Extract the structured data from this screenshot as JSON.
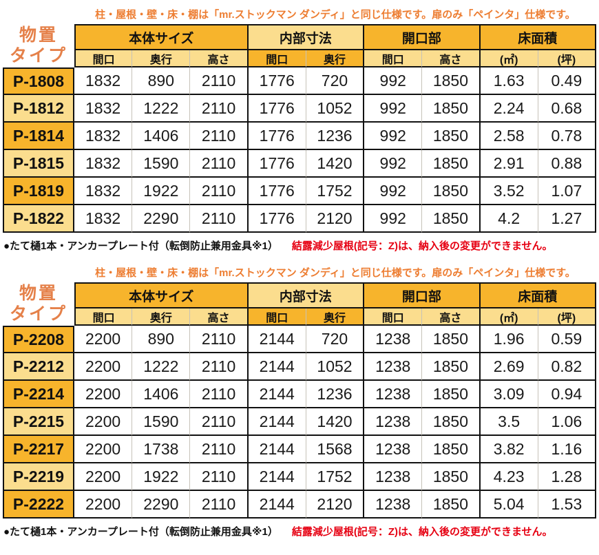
{
  "shared": {
    "note": "柱・屋根・壁・床・棚は「mr.ストックマン ダンディ」と同じ仕様です。扉のみ「ペインタ」仕様です。",
    "footer_black": "●たて樋1本・アンカープレート付（転倒防止兼用金具※1）",
    "footer_red": "結露減少屋根(記号：Z)は、納入後の変更ができません。"
  },
  "header": {
    "row_title_lines": [
      "物置",
      "タイプ"
    ],
    "groups": [
      {
        "label": "本体サイズ",
        "children": [
          "間口",
          "奥行",
          "高さ"
        ]
      },
      {
        "label": "内部寸法",
        "children": [
          "間口",
          "奥行"
        ]
      },
      {
        "label": "開口部",
        "children": [
          "間口",
          "高さ"
        ]
      },
      {
        "label": "床面積",
        "children": [
          "(㎡)",
          "(坪)"
        ]
      }
    ]
  },
  "colors": {
    "amber_dark": "#f7b42c",
    "amber_light": "#fbdd8e",
    "orange_text": "#ed7d31",
    "label_orange": "#e5814a",
    "red_text": "#e60012"
  },
  "tables": [
    {
      "rows": [
        {
          "label": "P-1808",
          "values": [
            "1832",
            "890",
            "2110",
            "1776",
            "720",
            "992",
            "1850",
            "1.63",
            "0.49"
          ]
        },
        {
          "label": "P-1812",
          "values": [
            "1832",
            "1222",
            "2110",
            "1776",
            "1052",
            "992",
            "1850",
            "2.24",
            "0.68"
          ]
        },
        {
          "label": "P-1814",
          "values": [
            "1832",
            "1406",
            "2110",
            "1776",
            "1236",
            "992",
            "1850",
            "2.58",
            "0.78"
          ]
        },
        {
          "label": "P-1815",
          "values": [
            "1832",
            "1590",
            "2110",
            "1776",
            "1420",
            "992",
            "1850",
            "2.91",
            "0.88"
          ]
        },
        {
          "label": "P-1819",
          "values": [
            "1832",
            "1922",
            "2110",
            "1776",
            "1752",
            "992",
            "1850",
            "3.52",
            "1.07"
          ]
        },
        {
          "label": "P-1822",
          "values": [
            "1832",
            "2290",
            "2110",
            "1776",
            "2120",
            "992",
            "1850",
            "4.2",
            "1.27"
          ]
        }
      ]
    },
    {
      "rows": [
        {
          "label": "P-2208",
          "values": [
            "2200",
            "890",
            "2110",
            "2144",
            "720",
            "1238",
            "1850",
            "1.96",
            "0.59"
          ]
        },
        {
          "label": "P-2212",
          "values": [
            "2200",
            "1222",
            "2110",
            "2144",
            "1052",
            "1238",
            "1850",
            "2.69",
            "0.82"
          ]
        },
        {
          "label": "P-2214",
          "values": [
            "2200",
            "1406",
            "2110",
            "2144",
            "1236",
            "1238",
            "1850",
            "3.09",
            "0.94"
          ]
        },
        {
          "label": "P-2215",
          "values": [
            "2200",
            "1590",
            "2110",
            "2144",
            "1420",
            "1238",
            "1850",
            "3.5",
            "1.06"
          ]
        },
        {
          "label": "P-2217",
          "values": [
            "2200",
            "1738",
            "2110",
            "2144",
            "1568",
            "1238",
            "1850",
            "3.82",
            "1.16"
          ]
        },
        {
          "label": "P-2219",
          "values": [
            "2200",
            "1922",
            "2110",
            "2144",
            "1752",
            "1238",
            "1850",
            "4.23",
            "1.28"
          ]
        },
        {
          "label": "P-2222",
          "values": [
            "2200",
            "2290",
            "2110",
            "2144",
            "2120",
            "1238",
            "1850",
            "5.04",
            "1.53"
          ]
        }
      ]
    }
  ]
}
